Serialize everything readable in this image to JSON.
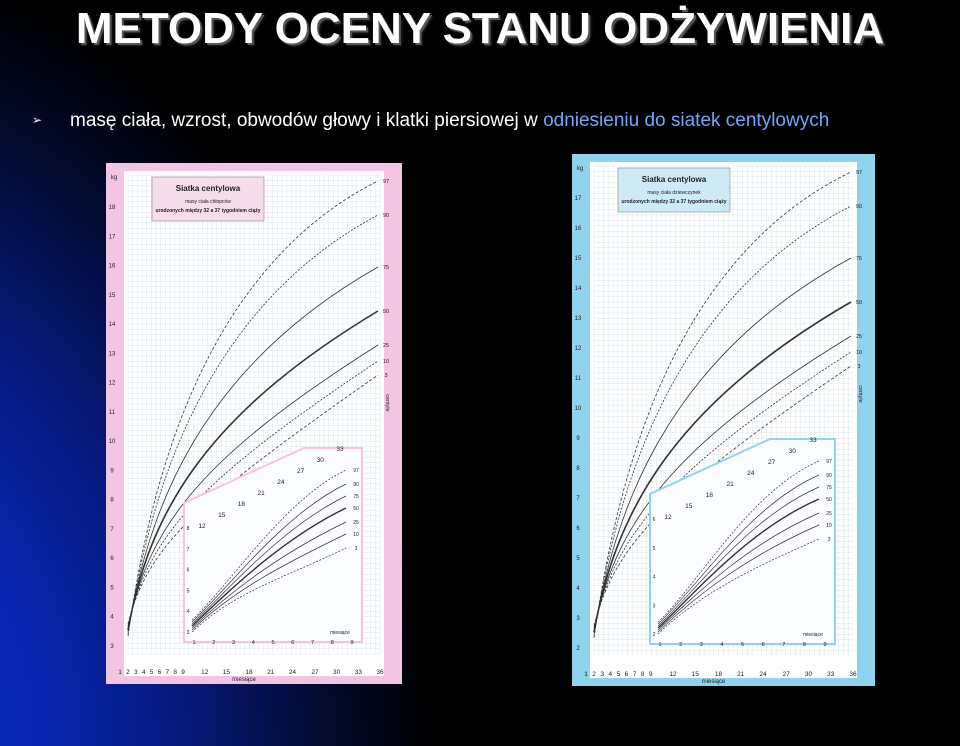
{
  "title": "METODY OCENY STANU ODŻYWIENIA",
  "bullet": {
    "marker": "➢",
    "text_white": "masę ciała, wzrost, obwodów głowy i klatki piersiowej w ",
    "text_blue": "odniesieniu do siatek centylowych"
  },
  "colors": {
    "background": "#000000",
    "accent_blue": "#6fa8ff",
    "boys_frame": "#f2c6e2",
    "girls_frame": "#8fd3ec",
    "boys_header": "#f7dcec",
    "girls_header": "#cdebf7"
  },
  "charts": [
    {
      "id": "boys",
      "header_title": "Siatka centylowa",
      "header_line1": "masy ciała chłopców",
      "header_line2": "urodzonych między 32 a 37 tygodniem ciąży",
      "unit_kg": "kg",
      "y_ticks": [
        "3",
        "4",
        "5",
        "6",
        "7",
        "8",
        "9",
        "10",
        "11",
        "12",
        "13",
        "14",
        "15",
        "16",
        "17",
        "18"
      ],
      "x_ticks": [
        "1",
        "2",
        "3",
        "4",
        "5",
        "6",
        "7",
        "8",
        "9",
        "12",
        "15",
        "18",
        "21",
        "24",
        "27",
        "30",
        "33",
        "36"
      ],
      "x_label": "miesiące",
      "centile_labels": [
        "97",
        "90",
        "75",
        "50",
        "25",
        "10",
        "3"
      ],
      "centile_word": "centyle",
      "inset_top_ticks": [
        "12",
        "15",
        "18",
        "21",
        "24",
        "27",
        "30",
        "33"
      ],
      "inset_y_ticks": [
        "3",
        "4",
        "5",
        "6",
        "7",
        "8"
      ],
      "inset_x_ticks": [
        "1",
        "2",
        "3",
        "4",
        "5",
        "6",
        "7",
        "8",
        "9"
      ],
      "inset_x_label": "miesiące",
      "inset_centiles": [
        "97",
        "90",
        "75",
        "50",
        "25",
        "10",
        "3"
      ]
    },
    {
      "id": "girls",
      "header_title": "Siatka centylowa",
      "header_line1": "masy ciała dziewczynek",
      "header_line2": "urodzonych między 32 a 37 tygodniem ciąży",
      "unit_kg": "kg",
      "y_ticks": [
        "2",
        "3",
        "4",
        "5",
        "6",
        "7",
        "8",
        "9",
        "10",
        "11",
        "12",
        "13",
        "14",
        "15",
        "16",
        "17"
      ],
      "x_ticks": [
        "1",
        "2",
        "3",
        "4",
        "5",
        "6",
        "7",
        "8",
        "9",
        "12",
        "15",
        "18",
        "21",
        "24",
        "27",
        "30",
        "33",
        "36"
      ],
      "x_label": "miesiące",
      "centile_labels": [
        "97",
        "90",
        "75",
        "50",
        "25",
        "10",
        "3"
      ],
      "centile_word": "centyle",
      "inset_top_ticks": [
        "12",
        "15",
        "18",
        "21",
        "24",
        "27",
        "30",
        "33"
      ],
      "inset_y_ticks": [
        "2",
        "3",
        "4",
        "5",
        "6"
      ],
      "inset_x_ticks": [
        "1",
        "2",
        "3",
        "4",
        "5",
        "6",
        "7",
        "8",
        "9"
      ],
      "inset_x_label": "miesiące",
      "inset_centiles": [
        "97",
        "90",
        "75",
        "50",
        "25",
        "10",
        "3"
      ]
    }
  ]
}
